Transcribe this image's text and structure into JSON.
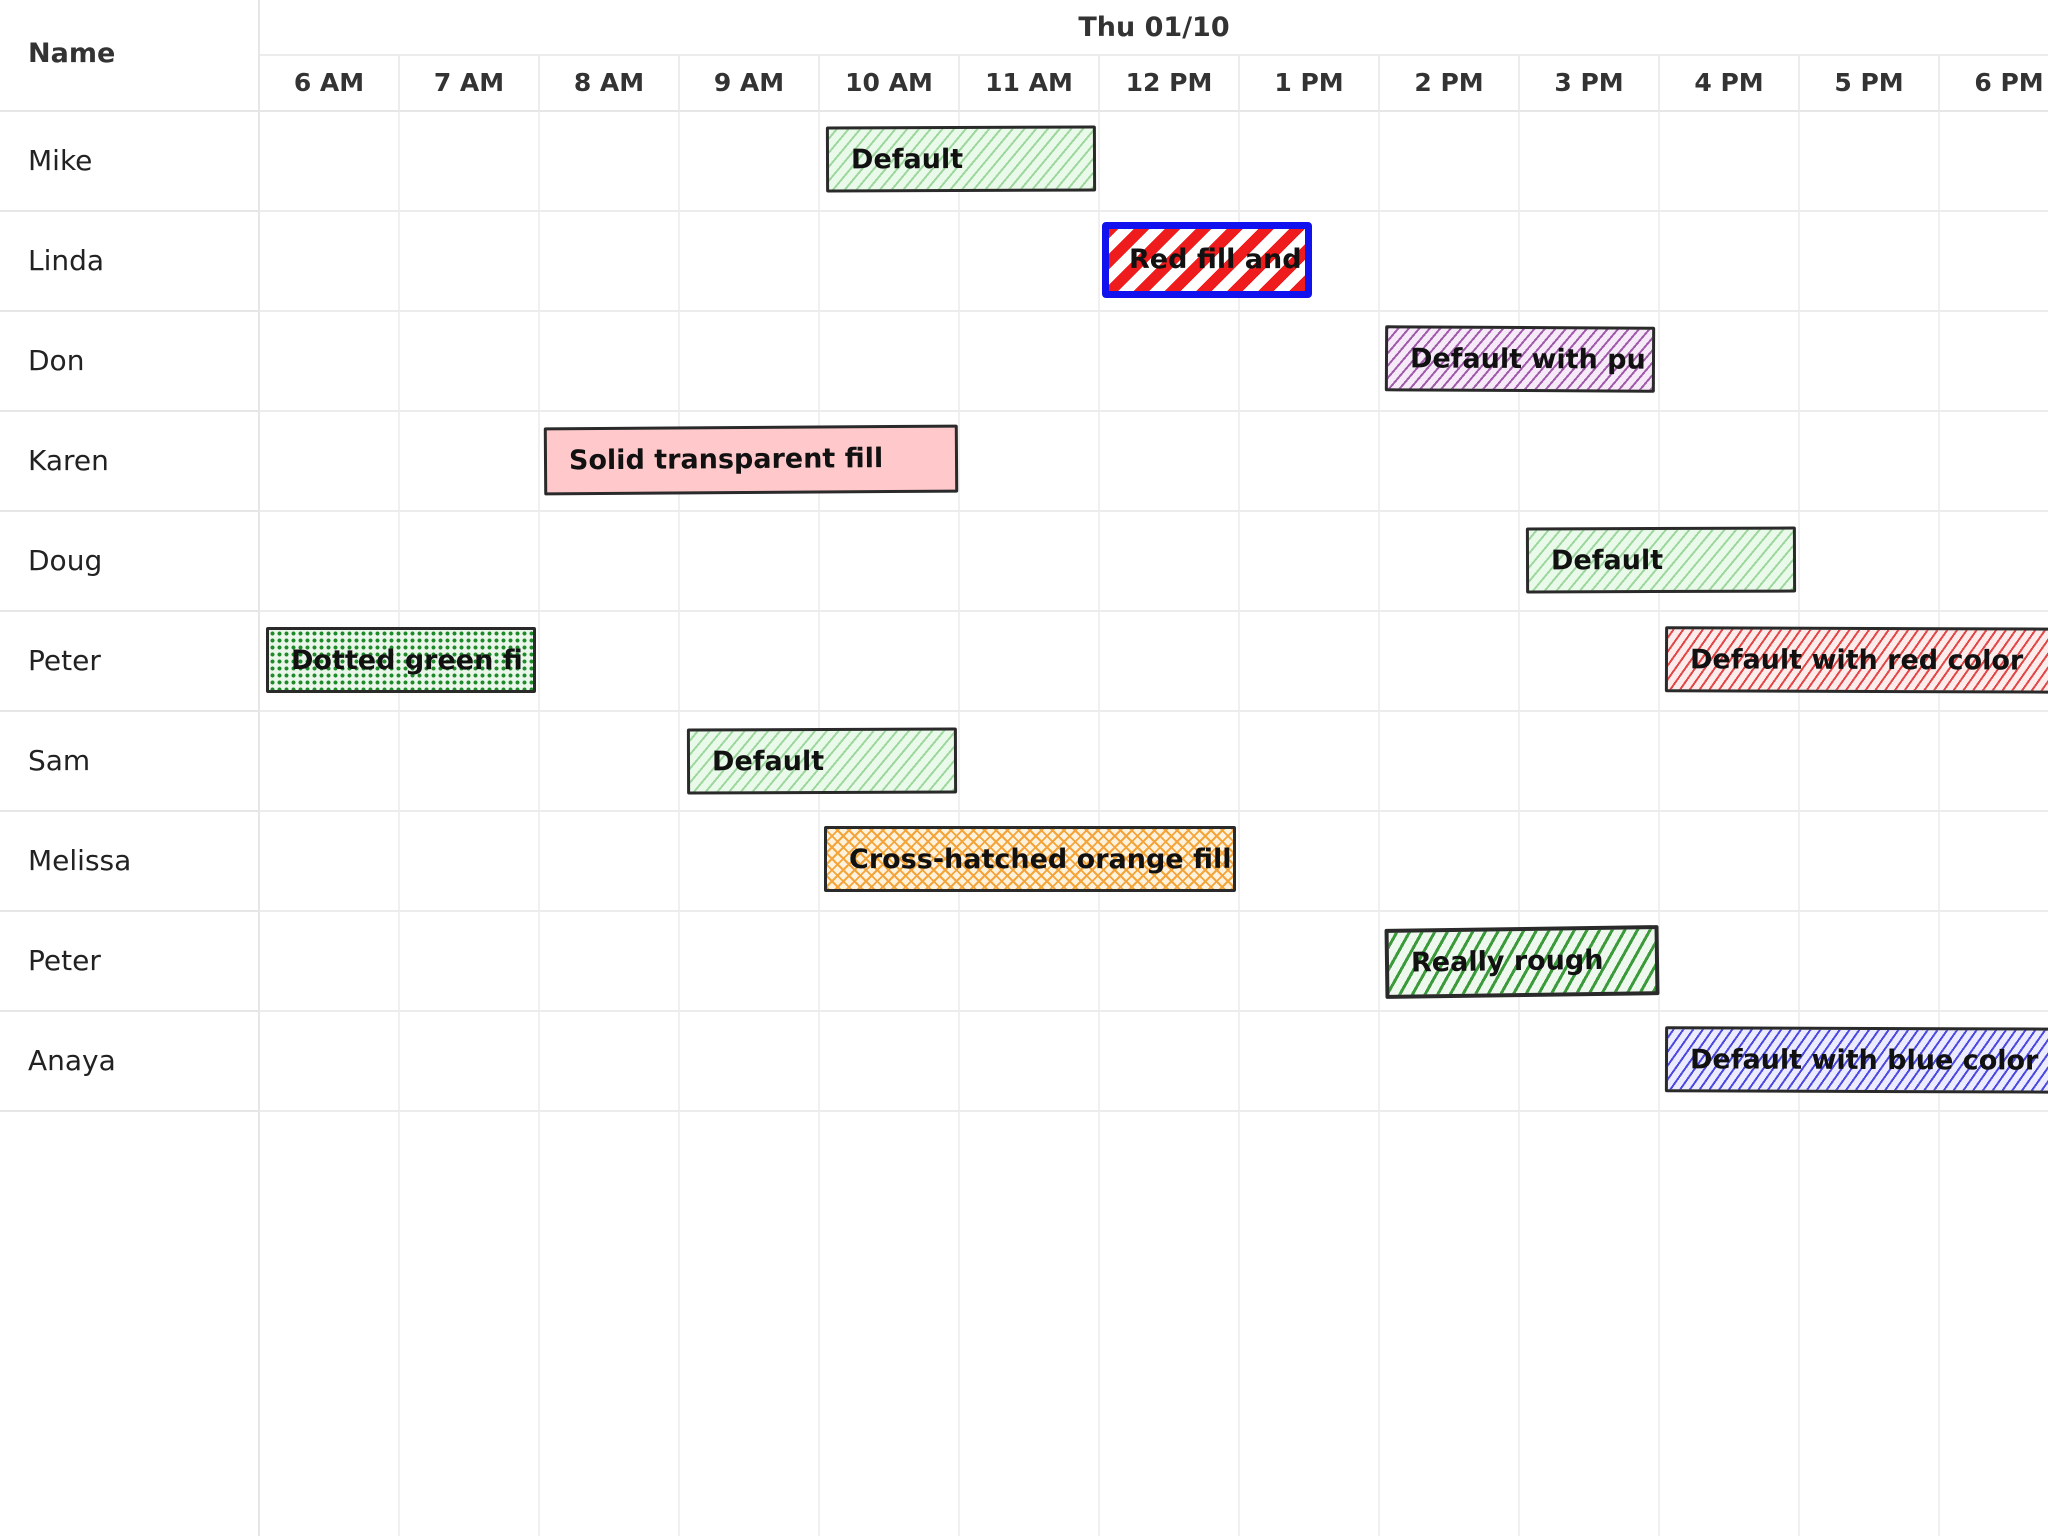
{
  "resource_header": {
    "label": "Name"
  },
  "timeline": {
    "day_label": "Thu 01/10",
    "hours": [
      "6 AM",
      "7 AM",
      "8 AM",
      "9 AM",
      "10 AM",
      "11 AM",
      "12 PM",
      "1 PM",
      "2 PM",
      "3 PM",
      "4 PM",
      "5 PM",
      "6 PM"
    ]
  },
  "resources": [
    {
      "name": "Mike"
    },
    {
      "name": "Linda"
    },
    {
      "name": "Don"
    },
    {
      "name": "Karen"
    },
    {
      "name": "Doug"
    },
    {
      "name": "Peter"
    },
    {
      "name": "Sam"
    },
    {
      "name": "Melissa"
    },
    {
      "name": "Peter"
    },
    {
      "name": "Anaya"
    }
  ],
  "events": [
    {
      "label": "Default",
      "resource": "Mike",
      "start": "10:05",
      "end": "12:00",
      "style": "default"
    },
    {
      "label": "Red fill and",
      "resource": "Linda",
      "start": "12:00",
      "end": "13:30",
      "style": "red-striped-blue-border"
    },
    {
      "label": "Default with pu",
      "resource": "Don",
      "start": "14:00",
      "end": "15:57",
      "style": "purple"
    },
    {
      "label": "Solid transparent fill",
      "resource": "Karen",
      "start": "8:03",
      "end": "11:00",
      "style": "solid-pink"
    },
    {
      "label": "Default",
      "resource": "Doug",
      "start": "15:02",
      "end": "17:00",
      "style": "default"
    },
    {
      "label": "Dotted green fi",
      "resource": "Peter",
      "start": "6:00",
      "end": "7:57",
      "style": "dotted-green"
    },
    {
      "label": "Default with red color",
      "resource": "Peter",
      "start": "16:00",
      "end": "18:50",
      "style": "red"
    },
    {
      "label": "Default",
      "resource": "Sam",
      "start": "9:05",
      "end": "11:00",
      "style": "default"
    },
    {
      "label": "Cross-hatched orange fill",
      "resource": "Melissa",
      "start": "10:03",
      "end": "13:00",
      "style": "cross-hatched-orange"
    },
    {
      "label": "Really rough",
      "resource": "Peter",
      "start": "14:00",
      "end": "15:58",
      "style": "rough-green"
    },
    {
      "label": "Default with blue color",
      "resource": "Anaya",
      "start": "16:00",
      "end": "18:50",
      "style": "blue"
    }
  ],
  "colors": {
    "default_fill": "#9ed79e",
    "red_stripe": "#ee1c1c",
    "blue_border": "#1212ee",
    "purple": "#a05aaa",
    "pink": "#ffc9cc",
    "dotted_green": "#1f8a2a",
    "red": "#e24646",
    "orange": "#f3a43a",
    "rough_green": "#3b9b3b",
    "blue": "#4a4ae0",
    "grid": "#ececec"
  }
}
